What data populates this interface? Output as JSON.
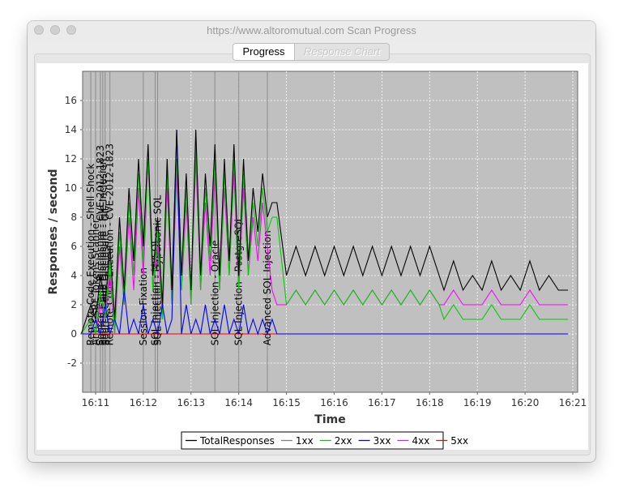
{
  "window": {
    "title": "https://www.altoromutual.com Scan Progress",
    "buttons": [
      "close",
      "minimize",
      "zoom"
    ]
  },
  "tabs": [
    {
      "label": "Progress",
      "active": true
    },
    {
      "label": "Response Chart",
      "active": false
    }
  ],
  "colors": {
    "plot_background": "#c0c0c0",
    "TotalResponses": "#000000",
    "1xx": "#808080",
    "2xx": "#00cc00",
    "3xx": "#0000ff",
    "4xx": "#ff00ff",
    "5xx": "#ff0000"
  },
  "chart_data": {
    "type": "line",
    "xlabel": "Time",
    "ylabel": "Responses / second",
    "ylim": [
      -4,
      18
    ],
    "yticks": [
      "-2",
      "0",
      "2",
      "4",
      "6",
      "8",
      "10",
      "12",
      "14",
      "16"
    ],
    "xticks": [
      "16:11",
      "16:12",
      "16:13",
      "16:14",
      "16:15",
      "16:16",
      "16:17",
      "16:18",
      "16:19",
      "16:20",
      "16:21"
    ],
    "grid": true,
    "legend_position": "bottom-center",
    "x": [
      "16:10.7",
      "16:10.9",
      "16:11.0",
      "16:11.1",
      "16:11.2",
      "16:11.3",
      "16:11.4",
      "16:11.5",
      "16:11.6",
      "16:11.7",
      "16:11.8",
      "16:11.9",
      "16:12.0",
      "16:12.1",
      "16:12.2",
      "16:12.3",
      "16:12.4",
      "16:12.5",
      "16:12.6",
      "16:12.7",
      "16:12.8",
      "16:12.9",
      "16:13.0",
      "16:13.1",
      "16:13.2",
      "16:13.3",
      "16:13.4",
      "16:13.5",
      "16:13.6",
      "16:13.7",
      "16:13.8",
      "16:13.9",
      "16:14.0",
      "16:14.1",
      "16:14.2",
      "16:14.3",
      "16:14.4",
      "16:14.5",
      "16:14.6",
      "16:14.7",
      "16:14.8",
      "16:15.0",
      "16:15.2",
      "16:15.4",
      "16:15.6",
      "16:15.8",
      "16:16.0",
      "16:16.2",
      "16:16.4",
      "16:16.6",
      "16:16.8",
      "16:17.0",
      "16:17.2",
      "16:17.4",
      "16:17.6",
      "16:17.8",
      "16:18.0",
      "16:18.2",
      "16:18.3",
      "16:18.5",
      "16:18.7",
      "16:18.9",
      "16:19.1",
      "16:19.3",
      "16:19.5",
      "16:19.7",
      "16:19.9",
      "16:20.1",
      "16:20.3",
      "16:20.5",
      "16:20.7",
      "16:20.9"
    ],
    "series": [
      {
        "name": "TotalResponses",
        "values": [
          0,
          2,
          1,
          4,
          2,
          6,
          1,
          8,
          3,
          10,
          5,
          12,
          6,
          13,
          4,
          8,
          2,
          12,
          3,
          14,
          4,
          11,
          3,
          14,
          4,
          11,
          6,
          13,
          4,
          12,
          5,
          13,
          4,
          12,
          5,
          10,
          7,
          11,
          8,
          9,
          9,
          4,
          6,
          4,
          6,
          4,
          6,
          4,
          6,
          4,
          6,
          4,
          6,
          4,
          6,
          4,
          6,
          4,
          3,
          5,
          3,
          4,
          3,
          5,
          3,
          4,
          3,
          5,
          3,
          4,
          3,
          3
        ]
      },
      {
        "name": "1xx",
        "values": [
          0,
          0,
          0,
          0,
          0,
          0,
          0,
          0,
          0,
          0,
          0,
          0,
          0,
          0,
          0,
          0,
          0,
          0,
          0,
          0,
          0,
          0,
          0,
          0,
          0,
          0,
          0,
          0,
          0,
          0,
          0,
          0,
          0,
          0,
          0,
          0,
          0,
          0,
          0,
          0,
          0,
          0,
          0,
          0,
          0,
          0,
          0,
          0,
          0,
          0,
          0,
          0,
          0,
          0,
          0,
          0,
          0,
          0,
          0,
          0,
          0,
          0,
          0,
          0,
          0,
          0,
          0,
          0,
          0,
          0,
          0,
          0
        ]
      },
      {
        "name": "2xx",
        "values": [
          0,
          1,
          0,
          3,
          1,
          5,
          0,
          7,
          2,
          9,
          4,
          11,
          5,
          12,
          3,
          7,
          1,
          11,
          2,
          12,
          3,
          10,
          2,
          13,
          3,
          10,
          5,
          12,
          3,
          11,
          4,
          12,
          3,
          11,
          4,
          9,
          6,
          10,
          7,
          8,
          8,
          2,
          3,
          2,
          3,
          2,
          3,
          2,
          3,
          2,
          3,
          2,
          3,
          2,
          3,
          2,
          3,
          2,
          1,
          2,
          1,
          1,
          1,
          2,
          1,
          1,
          1,
          2,
          1,
          1,
          1,
          1
        ]
      },
      {
        "name": "3xx",
        "values": [
          0,
          0,
          1,
          0,
          2,
          0,
          1,
          0,
          3,
          0,
          1,
          0,
          2,
          0,
          1,
          0,
          2,
          0,
          1,
          14,
          0,
          2,
          0,
          1,
          0,
          2,
          0,
          1,
          0,
          2,
          0,
          1,
          0,
          2,
          0,
          1,
          0,
          1,
          0,
          1,
          0,
          0,
          0,
          0,
          0,
          0,
          0,
          0,
          0,
          0,
          0,
          0,
          0,
          0,
          0,
          0,
          0,
          0,
          0,
          0,
          0,
          0,
          0,
          0,
          0,
          0,
          0,
          0,
          0,
          0,
          0,
          0
        ]
      },
      {
        "name": "4xx",
        "values": [
          0,
          1,
          0,
          2,
          1,
          4,
          0,
          6,
          2,
          8,
          3,
          10,
          4,
          12,
          3,
          6,
          1,
          10,
          2,
          11,
          3,
          9,
          2,
          12,
          3,
          9,
          4,
          11,
          3,
          10,
          4,
          11,
          3,
          10,
          4,
          8,
          5,
          9,
          6,
          3,
          2,
          2,
          3,
          2,
          3,
          2,
          3,
          2,
          3,
          2,
          3,
          2,
          3,
          2,
          3,
          2,
          3,
          2,
          2,
          3,
          2,
          2,
          2,
          3,
          2,
          2,
          2,
          3,
          2,
          2,
          2,
          2
        ]
      },
      {
        "name": "5xx",
        "values": [
          0,
          0,
          0,
          0,
          0,
          0,
          0,
          0,
          0,
          0,
          0,
          0,
          0,
          0,
          0,
          0,
          0,
          0,
          0,
          0,
          0,
          0,
          0,
          0,
          0,
          0,
          0,
          0,
          0,
          0,
          0,
          0,
          0,
          0,
          0,
          0,
          0,
          0,
          0,
          0,
          0,
          0,
          0,
          0,
          0,
          0,
          0,
          0,
          0,
          0,
          0,
          0,
          0,
          0,
          0,
          0,
          0,
          0,
          0,
          0,
          0,
          0,
          0,
          0,
          0,
          0,
          0,
          0,
          0,
          0,
          0,
          0
        ]
      }
    ],
    "annotations": [
      {
        "time": "16:10.9",
        "label": "Remote Code Execution - Shell Shock"
      },
      {
        "time": "16:11.0",
        "label": "Anti CSRF Tokens Scanner"
      },
      {
        "time": "16:11.1",
        "label": "Source Code Disclosure - CVE-2012-1823"
      },
      {
        "time": "16:11.15",
        "label": "Source Code Disclosure - File Inclusion"
      },
      {
        "time": "16:11.2",
        "label": "Source Code Disclosure - Git"
      },
      {
        "time": "16:11.3",
        "label": "Remote Code Execution - CVE-2012-1823"
      },
      {
        "time": "16:12.25",
        "label": "SQL Injection - MySQL"
      },
      {
        "time": "16:12.3",
        "label": "SQL Injection - Hypersonic SQL"
      },
      {
        "time": "16:12.0",
        "label": "Session Fixation"
      },
      {
        "time": "16:13.5",
        "label": "SQL Injection - Oracle"
      },
      {
        "time": "16:14.0",
        "label": "SQL Injection - PostgreSQL"
      },
      {
        "time": "16:14.6",
        "label": "Advanced SQL Injection"
      }
    ]
  }
}
